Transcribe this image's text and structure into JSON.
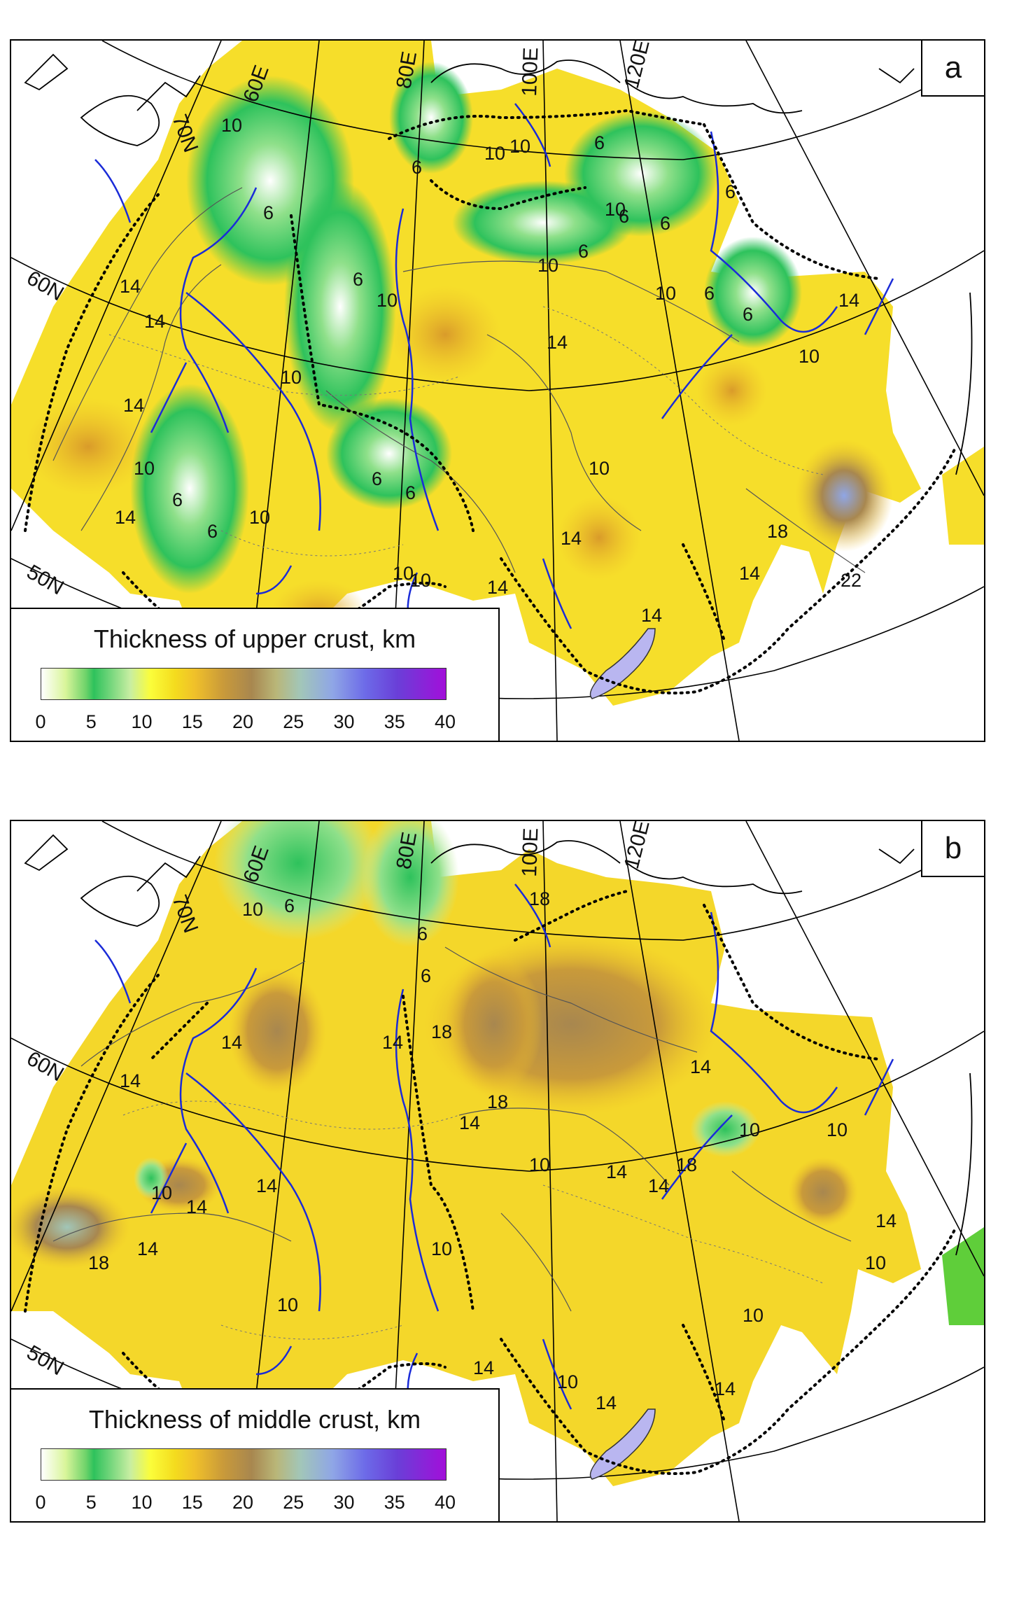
{
  "panels": [
    {
      "letter": "a",
      "legend_title": "Thickness of upper crust, km",
      "meridian_labels": [
        "60E",
        "80E",
        "100E",
        "120E"
      ],
      "parallel_labels": [
        "70N",
        "60N",
        "50N"
      ],
      "contour_labels": [
        "10",
        "10",
        "6",
        "6",
        "10",
        "10",
        "6",
        "6",
        "6",
        "6",
        "6",
        "10",
        "10",
        "14",
        "14",
        "10",
        "6",
        "6",
        "6",
        "10",
        "10",
        "14",
        "14",
        "10",
        "6",
        "6",
        "10",
        "14",
        "10",
        "14",
        "14",
        "10",
        "6",
        "6",
        "14",
        "18",
        "14",
        "22",
        "10",
        "14"
      ]
    },
    {
      "letter": "b",
      "legend_title": "Thickness of middle crust, km",
      "meridian_labels": [
        "60E",
        "80E",
        "100E",
        "120E"
      ],
      "parallel_labels": [
        "70N",
        "60N",
        "50N"
      ],
      "contour_labels": [
        "10",
        "6",
        "6",
        "6",
        "18",
        "14",
        "14",
        "18",
        "18",
        "14",
        "14",
        "14",
        "10",
        "10",
        "14",
        "14",
        "18",
        "10",
        "14",
        "10",
        "10",
        "14",
        "14",
        "18",
        "14",
        "18",
        "10",
        "14",
        "10",
        "14",
        "10",
        "14",
        "14",
        "10"
      ]
    }
  ],
  "legend_ticks": [
    "0",
    "5",
    "10",
    "15",
    "20",
    "25",
    "30",
    "35",
    "40"
  ],
  "colors": {
    "river": "#1a2bd8",
    "lake": "#b9b6f0",
    "boundary": "#000000",
    "green": "#2ec25c",
    "yellow": "#fbfd3a",
    "orange": "#f0c02a",
    "brown": "#a8874f",
    "violet": "#a20fd9"
  }
}
